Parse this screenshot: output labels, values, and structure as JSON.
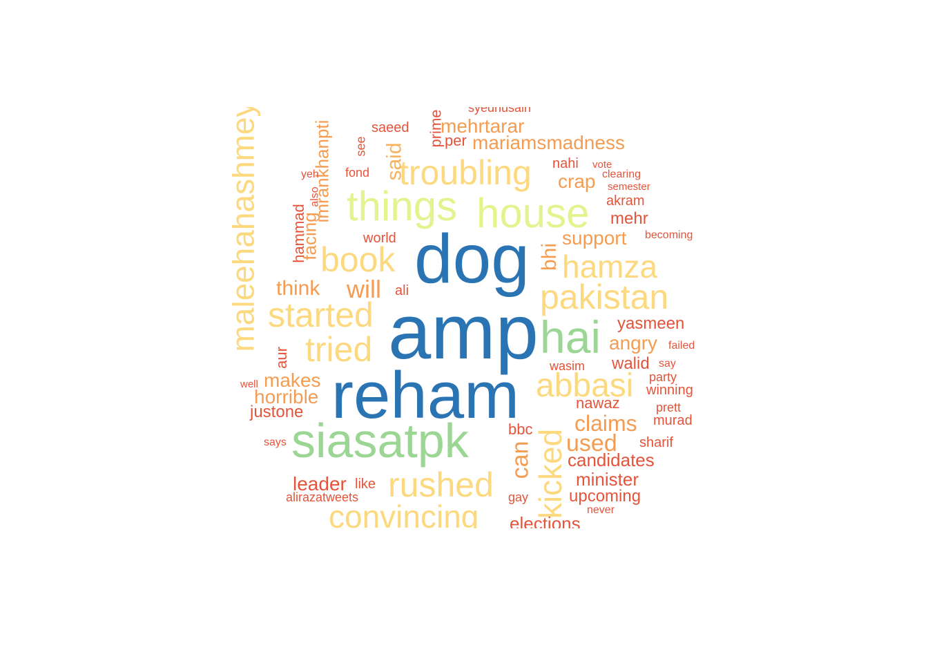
{
  "palette": {
    "blue": "#2b74b3",
    "green": "#9cd694",
    "yellow_green": "#e5f38f",
    "yellow": "#fcd97e",
    "orange": "#f49c52",
    "red": "#e4543a"
  },
  "words": [
    {
      "text": "amp",
      "color": "#2b74b3"
    },
    {
      "text": "reham",
      "color": "#2b74b3"
    },
    {
      "text": "dog",
      "color": "#2b74b3"
    },
    {
      "text": "siasatpk",
      "color": "#9cd694"
    },
    {
      "text": "hai",
      "color": "#9cd694"
    },
    {
      "text": "house",
      "color": "#e5f38f"
    },
    {
      "text": "things",
      "color": "#e5f38f"
    },
    {
      "text": "maleehahashmey",
      "color": "#fcd97e"
    },
    {
      "text": "troubling",
      "color": "#fcd97e"
    },
    {
      "text": "book",
      "color": "#fcd97e"
    },
    {
      "text": "started",
      "color": "#fcd97e"
    },
    {
      "text": "tried",
      "color": "#fcd97e"
    },
    {
      "text": "pakistan",
      "color": "#fcd97e"
    },
    {
      "text": "hamza",
      "color": "#fcd97e"
    },
    {
      "text": "abbasi",
      "color": "#fcd97e"
    },
    {
      "text": "kicked",
      "color": "#fcd97e"
    },
    {
      "text": "rushed",
      "color": "#fcd97e"
    },
    {
      "text": "convincing",
      "color": "#fcd97e"
    },
    {
      "text": "said",
      "color": "#f6b25e"
    },
    {
      "text": "imrankhanpti",
      "color": "#f49c52"
    },
    {
      "text": "will",
      "color": "#f49c52"
    },
    {
      "text": "think",
      "color": "#f49c52"
    },
    {
      "text": "bhi",
      "color": "#f49c52"
    },
    {
      "text": "support",
      "color": "#f49c52"
    },
    {
      "text": "mehrtarar",
      "color": "#f49c52"
    },
    {
      "text": "mariamsmadness",
      "color": "#f49c52"
    },
    {
      "text": "crap",
      "color": "#f49c52"
    },
    {
      "text": "angry",
      "color": "#f49c52"
    },
    {
      "text": "claims",
      "color": "#f49c52"
    },
    {
      "text": "used",
      "color": "#f49c52"
    },
    {
      "text": "can",
      "color": "#f49c52"
    },
    {
      "text": "makes",
      "color": "#f49c52"
    },
    {
      "text": "horrible",
      "color": "#f49c52"
    },
    {
      "text": "facing",
      "color": "#f49c52"
    },
    {
      "text": "prime",
      "color": "#e4543a"
    },
    {
      "text": "syedhusain",
      "color": "#e4543a"
    },
    {
      "text": "saeed",
      "color": "#e4543a"
    },
    {
      "text": "per",
      "color": "#e4543a"
    },
    {
      "text": "see",
      "color": "#e4543a"
    },
    {
      "text": "fond",
      "color": "#e4543a"
    },
    {
      "text": "yeh",
      "color": "#e4543a"
    },
    {
      "text": "also",
      "color": "#e4543a"
    },
    {
      "text": "hammad",
      "color": "#e4543a"
    },
    {
      "text": "world",
      "color": "#e4543a"
    },
    {
      "text": "ali",
      "color": "#e4543a"
    },
    {
      "text": "nahi",
      "color": "#e4543a"
    },
    {
      "text": "vote",
      "color": "#e4543a"
    },
    {
      "text": "clearing",
      "color": "#e4543a"
    },
    {
      "text": "semester",
      "color": "#e4543a"
    },
    {
      "text": "akram",
      "color": "#e4543a"
    },
    {
      "text": "mehr",
      "color": "#e4543a"
    },
    {
      "text": "becoming",
      "color": "#e4543a"
    },
    {
      "text": "yasmeen",
      "color": "#e4543a"
    },
    {
      "text": "failed",
      "color": "#e4543a"
    },
    {
      "text": "walid",
      "color": "#e4543a"
    },
    {
      "text": "wasim",
      "color": "#e4543a"
    },
    {
      "text": "say",
      "color": "#e4543a"
    },
    {
      "text": "party",
      "color": "#e4543a"
    },
    {
      "text": "winning",
      "color": "#e4543a"
    },
    {
      "text": "nawaz",
      "color": "#e4543a"
    },
    {
      "text": "prett",
      "color": "#e4543a"
    },
    {
      "text": "murad",
      "color": "#e4543a"
    },
    {
      "text": "sharif",
      "color": "#e4543a"
    },
    {
      "text": "bbc",
      "color": "#e4543a"
    },
    {
      "text": "candidates",
      "color": "#e4543a"
    },
    {
      "text": "minister",
      "color": "#e4543a"
    },
    {
      "text": "upcoming",
      "color": "#e4543a"
    },
    {
      "text": "never",
      "color": "#e4543a"
    },
    {
      "text": "elections",
      "color": "#e4543a"
    },
    {
      "text": "gay",
      "color": "#e4543a"
    },
    {
      "text": "leader",
      "color": "#e4543a"
    },
    {
      "text": "like",
      "color": "#e4543a"
    },
    {
      "text": "alirazatweets",
      "color": "#e4543a"
    },
    {
      "text": "says",
      "color": "#e4543a"
    },
    {
      "text": "well",
      "color": "#e4543a"
    },
    {
      "text": "justone",
      "color": "#e4543a"
    },
    {
      "text": "aur",
      "color": "#e4543a"
    }
  ]
}
